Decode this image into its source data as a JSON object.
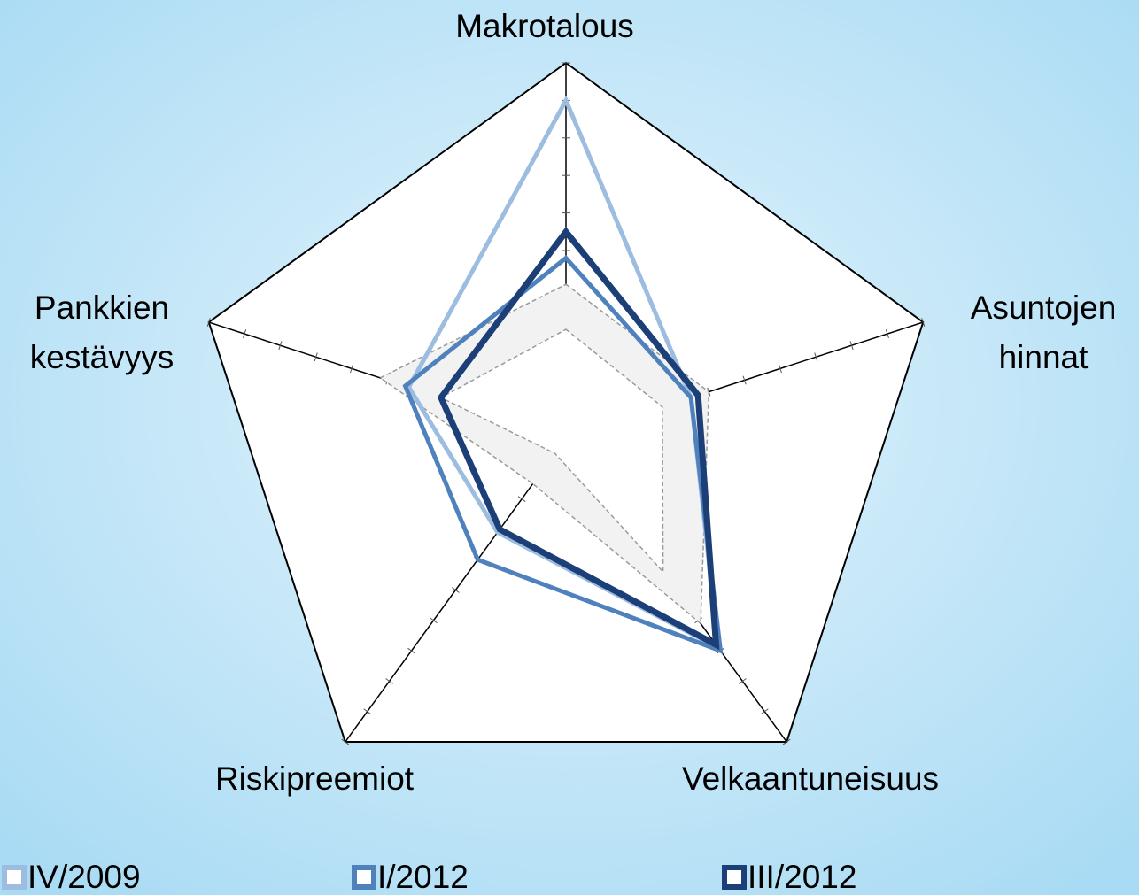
{
  "chart_data": {
    "type": "radar",
    "categories": [
      [
        "Makrotalous"
      ],
      [
        "Asuntojen",
        "hinnat"
      ],
      [
        "Velkaantuneisuus"
      ],
      [
        "Riskipreemiot"
      ],
      [
        "Pankkien",
        "kestävyys"
      ]
    ],
    "rlim": [
      0,
      10
    ],
    "rticks": [
      0,
      1,
      2,
      3,
      4,
      5,
      6,
      7,
      8,
      9,
      10
    ],
    "range_band": {
      "color": "#9a9a9a",
      "fill": "#f2f2f2",
      "upper": [
        4.1,
        4.0,
        6.1,
        1.5,
        5.2
      ],
      "lower": [
        2.9,
        2.7,
        4.4,
        0.5,
        3.5
      ]
    },
    "series": [
      {
        "name": "IV/2009",
        "color": "#9dbde0",
        "values": [
          9.0,
          3.5,
          6.9,
          3.1,
          4.4
        ]
      },
      {
        "name": "I/2012",
        "color": "#4f81bd",
        "values": [
          4.8,
          3.5,
          7.0,
          4.0,
          4.5
        ]
      },
      {
        "name": "III/2012",
        "color": "#1c3f78",
        "values": [
          5.5,
          3.7,
          6.8,
          3.0,
          3.5
        ]
      }
    ]
  }
}
